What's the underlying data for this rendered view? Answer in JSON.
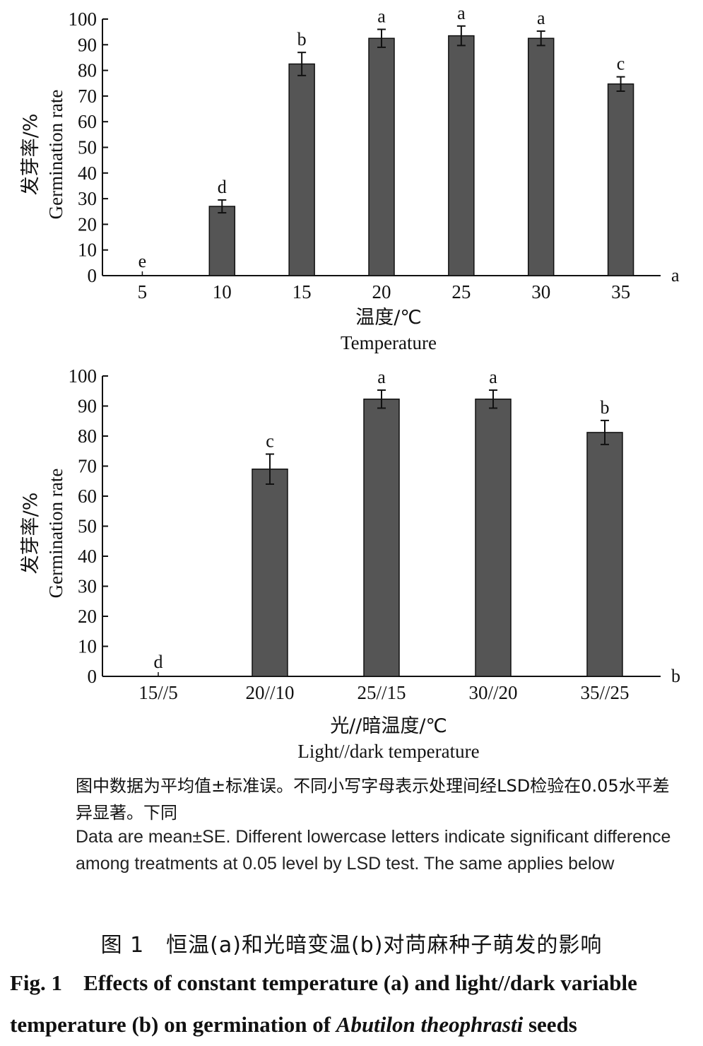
{
  "chart_data": [
    {
      "type": "bar",
      "panel": "a",
      "categories": [
        "5",
        "10",
        "15",
        "20",
        "25",
        "30",
        "35"
      ],
      "values": [
        0,
        27,
        82.5,
        92.5,
        93.5,
        92.5,
        74.7
      ],
      "errors": [
        0,
        2.5,
        4.5,
        3.5,
        3.8,
        2.8,
        2.8
      ],
      "letters": [
        "e",
        "d",
        "b",
        "a",
        "a",
        "a",
        "c"
      ],
      "ylim": [
        0,
        100
      ],
      "yticks": [
        "0",
        "10",
        "20",
        "30",
        "40",
        "50",
        "60",
        "70",
        "80",
        "90",
        "100"
      ],
      "xlabel_zh": "温度/℃",
      "xlabel_en": "Temperature",
      "ylabel_zh": "发芽率/%",
      "ylabel_en": "Germination rate"
    },
    {
      "type": "bar",
      "panel": "b",
      "categories": [
        "15//5",
        "20//10",
        "25//15",
        "30//20",
        "35//25"
      ],
      "values": [
        0,
        69,
        92.3,
        92.3,
        81.2
      ],
      "errors": [
        0,
        5,
        3,
        3,
        4
      ],
      "letters": [
        "d",
        "c",
        "a",
        "a",
        "b"
      ],
      "ylim": [
        0,
        100
      ],
      "yticks": [
        "0",
        "10",
        "20",
        "30",
        "40",
        "50",
        "60",
        "70",
        "80",
        "90",
        "100"
      ],
      "xlabel_zh": "光//暗温度/℃",
      "xlabel_en": "Light//dark temperature",
      "ylabel_zh": "发芽率/%",
      "ylabel_en": "Germination rate"
    }
  ],
  "note_zh": "图中数据为平均值±标准误。不同小写字母表示处理间经LSD检验在0.05水平差异显著。下同",
  "note_en": "Data are mean±SE. Different lowercase letters indicate significant difference among treatments at 0.05 level by LSD test. The same applies below",
  "caption_zh": "图 1　恒温(a)和光暗变温(b)对苘麻种子萌发的影响",
  "caption_en_num": "Fig. 1",
  "caption_en_line1": "Effects of constant temperature (a) and light//dark variable",
  "caption_en_line2_pre": "temperature (b) on germination of ",
  "caption_en_species": "Abutilon theophrasti",
  "caption_en_line2_post": " seeds",
  "colors": {
    "bar": "#555555",
    "axis": "#111111"
  }
}
